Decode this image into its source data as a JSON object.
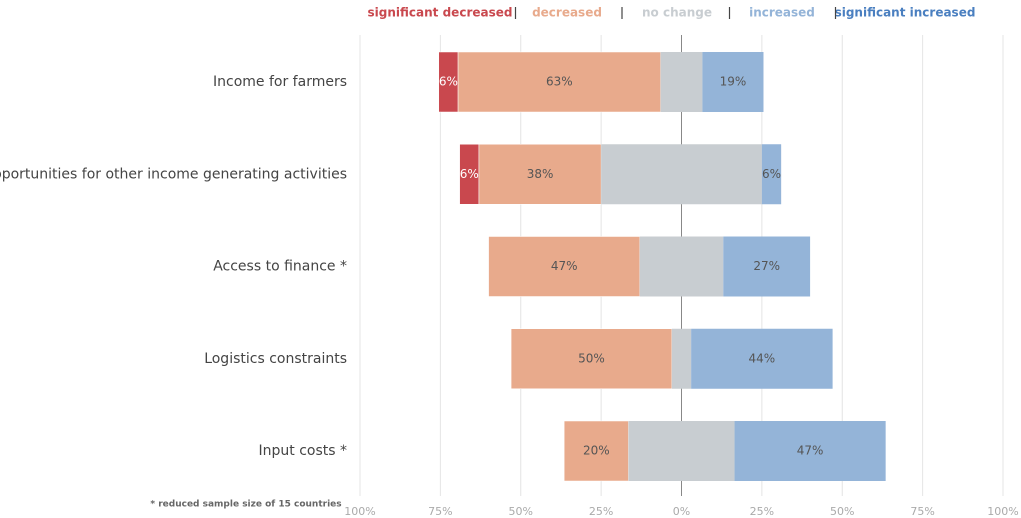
{
  "chart_data": {
    "type": "diverging_bar",
    "categories": [
      "Income for farmers",
      "Opportunities for other income generating activities",
      "Access to finance *",
      "Logistics constraints",
      "Input costs *"
    ],
    "series": [
      {
        "name": "significant decreased",
        "color": "#c9484e",
        "values": [
          6,
          6,
          0,
          0,
          0
        ],
        "value_labels": [
          "6%",
          "6%",
          null,
          null,
          null
        ]
      },
      {
        "name": "decreased",
        "color": "#e8aa8c",
        "values": [
          63,
          38,
          47,
          50,
          20
        ],
        "value_labels": [
          "63%",
          "38%",
          "47%",
          "50%",
          "20%"
        ]
      },
      {
        "name": "no change",
        "color": "#c8cdd1",
        "values": [
          13,
          50,
          26,
          6,
          33
        ],
        "value_labels": [
          null,
          null,
          null,
          null,
          null
        ]
      },
      {
        "name": "increased",
        "color": "#94b4d8",
        "values": [
          19,
          6,
          27,
          44,
          47
        ],
        "value_labels": [
          "19%",
          "6%",
          "27%",
          "44%",
          "47%"
        ]
      },
      {
        "name": "significant increased",
        "color": "#4a7fc0",
        "values": [
          0,
          0,
          0,
          0,
          0
        ],
        "value_labels": [
          null,
          null,
          null,
          null,
          null
        ]
      }
    ],
    "xlim": [
      -100,
      100
    ],
    "xticks": [
      {
        "value": -100,
        "label": "100%"
      },
      {
        "value": -75,
        "label": "75%"
      },
      {
        "value": -50,
        "label": "50%"
      },
      {
        "value": -25,
        "label": "25%"
      },
      {
        "value": 0,
        "label": "0%"
      },
      {
        "value": 25,
        "label": "25%"
      },
      {
        "value": 50,
        "label": "50%"
      },
      {
        "value": 75,
        "label": "75%"
      },
      {
        "value": 100,
        "label": "100%"
      }
    ],
    "grid": true,
    "legend": "top",
    "footnote": "* reduced sample size of 15 countries"
  }
}
